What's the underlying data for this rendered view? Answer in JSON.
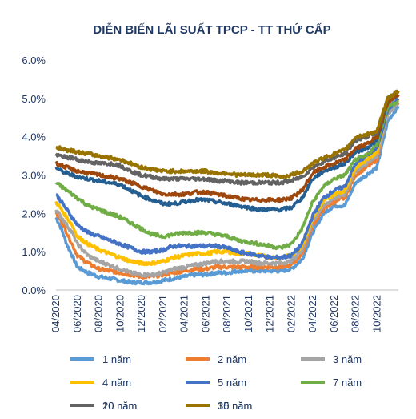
{
  "chart_data": {
    "type": "line",
    "title": "DIỄN BIẾN LÃI SUẤT TPCP - TT THỨ CẤP",
    "xlabel": "",
    "ylabel": "",
    "ylim": [
      0,
      6
    ],
    "y_ticks": [
      "0.0%",
      "1.0%",
      "2.0%",
      "3.0%",
      "4.0%",
      "5.0%",
      "6.0%"
    ],
    "x_ticks": [
      "04/2020",
      "06/2020",
      "08/2020",
      "10/2020",
      "12/2020",
      "02/2021",
      "04/2021",
      "06/2021",
      "08/2021",
      "10/2021",
      "12/2021",
      "02/2022",
      "04/2022",
      "06/2022",
      "08/2022",
      "10/2022"
    ],
    "x_range": [
      "2020-04",
      "2022-10"
    ],
    "grid": false,
    "legend_position": "bottom",
    "x": [
      0,
      0.5,
      1,
      1.5,
      2,
      3,
      4,
      5,
      6,
      7,
      8,
      9,
      10,
      11,
      12,
      13,
      14,
      15,
      16,
      17,
      18,
      19,
      20,
      21,
      22,
      23,
      24,
      25,
      26,
      27,
      28,
      29,
      30,
      31,
      32
    ],
    "series": [
      {
        "name": "1 năm",
        "color": "#5b9bd5",
        "values": [
          1.9,
          1.6,
          1.2,
          0.9,
          0.6,
          0.45,
          0.35,
          0.3,
          0.25,
          0.2,
          0.2,
          0.2,
          0.25,
          0.3,
          0.35,
          0.4,
          0.4,
          0.45,
          0.45,
          0.5,
          0.5,
          0.5,
          0.5,
          0.5,
          0.55,
          0.8,
          1.5,
          2.0,
          2.2,
          2.2,
          2.8,
          3.0,
          3.2,
          4.4,
          4.8
        ]
      },
      {
        "name": "2 năm",
        "color": "#ed7d31",
        "values": [
          2.0,
          1.8,
          1.5,
          1.2,
          0.9,
          0.7,
          0.55,
          0.5,
          0.45,
          0.4,
          0.35,
          0.35,
          0.4,
          0.45,
          0.5,
          0.55,
          0.55,
          0.6,
          0.6,
          0.6,
          0.6,
          0.6,
          0.6,
          0.6,
          0.65,
          0.95,
          1.7,
          2.1,
          2.3,
          2.4,
          3.0,
          3.2,
          3.4,
          4.6,
          4.9
        ]
      },
      {
        "name": "3 năm",
        "color": "#a5a5a5",
        "values": [
          2.1,
          1.9,
          1.7,
          1.5,
          1.2,
          0.9,
          0.75,
          0.65,
          0.55,
          0.45,
          0.4,
          0.4,
          0.45,
          0.55,
          0.6,
          0.65,
          0.7,
          0.75,
          0.75,
          0.75,
          0.75,
          0.7,
          0.7,
          0.7,
          0.75,
          1.05,
          1.8,
          2.2,
          2.4,
          2.5,
          3.1,
          3.3,
          3.5,
          4.6,
          4.9
        ]
      },
      {
        "name": "4 năm",
        "color": "#ffc000",
        "values": [
          2.3,
          2.1,
          1.9,
          1.7,
          1.4,
          1.2,
          1.05,
          0.95,
          0.85,
          0.75,
          0.7,
          0.7,
          0.75,
          0.85,
          0.9,
          0.95,
          0.95,
          1.0,
          1.0,
          0.95,
          0.95,
          0.9,
          0.85,
          0.85,
          0.9,
          1.15,
          1.9,
          2.3,
          2.5,
          2.6,
          3.2,
          3.4,
          3.6,
          4.7,
          5.0
        ]
      },
      {
        "name": "5 năm",
        "color": "#4472c4",
        "values": [
          2.5,
          2.3,
          2.1,
          1.9,
          1.7,
          1.5,
          1.4,
          1.3,
          1.2,
          1.1,
          1.0,
          1.0,
          1.05,
          1.15,
          1.15,
          1.15,
          1.15,
          1.15,
          1.1,
          1.0,
          0.95,
          0.9,
          0.85,
          0.85,
          0.9,
          1.2,
          1.95,
          2.4,
          2.6,
          2.7,
          3.3,
          3.5,
          3.7,
          4.7,
          5.0
        ]
      },
      {
        "name": "7 năm",
        "color": "#70ad47",
        "values": [
          2.8,
          2.7,
          2.6,
          2.5,
          2.4,
          2.2,
          2.1,
          2.0,
          1.9,
          1.75,
          1.6,
          1.45,
          1.4,
          1.45,
          1.5,
          1.5,
          1.5,
          1.45,
          1.4,
          1.3,
          1.25,
          1.2,
          1.15,
          1.1,
          1.2,
          1.6,
          2.3,
          2.7,
          2.9,
          3.0,
          3.4,
          3.5,
          3.8,
          4.8,
          4.9
        ]
      },
      {
        "name": "10 năm",
        "color": "#255e91",
        "values": [
          3.2,
          3.1,
          3.05,
          3.0,
          2.95,
          2.9,
          2.85,
          2.8,
          2.75,
          2.6,
          2.45,
          2.35,
          2.25,
          2.25,
          2.3,
          2.35,
          2.35,
          2.3,
          2.25,
          2.2,
          2.15,
          2.1,
          2.1,
          2.1,
          2.15,
          2.4,
          2.9,
          3.1,
          3.2,
          3.3,
          3.6,
          3.7,
          3.9,
          4.9,
          5.1
        ]
      },
      {
        "name": "15 năm",
        "color": "#9e480e",
        "values": [
          3.3,
          3.25,
          3.2,
          3.15,
          3.1,
          3.05,
          3.0,
          2.95,
          2.9,
          2.8,
          2.7,
          2.6,
          2.5,
          2.5,
          2.5,
          2.55,
          2.55,
          2.5,
          2.45,
          2.4,
          2.35,
          2.35,
          2.35,
          2.35,
          2.4,
          2.6,
          3.05,
          3.2,
          3.3,
          3.4,
          3.7,
          3.8,
          4.0,
          4.9,
          5.1
        ]
      },
      {
        "name": "20 năm",
        "color": "#636363",
        "values": [
          3.5,
          3.5,
          3.45,
          3.45,
          3.4,
          3.35,
          3.3,
          3.3,
          3.25,
          3.1,
          3.0,
          2.95,
          2.9,
          2.9,
          2.9,
          2.9,
          2.9,
          2.85,
          2.85,
          2.8,
          2.8,
          2.8,
          2.8,
          2.8,
          2.85,
          2.95,
          3.2,
          3.35,
          3.45,
          3.55,
          3.9,
          4.0,
          4.1,
          5.0,
          5.2
        ]
      },
      {
        "name": "30 năm",
        "color": "#997300",
        "values": [
          3.7,
          3.7,
          3.65,
          3.65,
          3.6,
          3.55,
          3.5,
          3.45,
          3.4,
          3.3,
          3.2,
          3.15,
          3.1,
          3.1,
          3.1,
          3.1,
          3.1,
          3.05,
          3.05,
          3.0,
          3.0,
          3.0,
          3.0,
          2.95,
          3.0,
          3.1,
          3.3,
          3.45,
          3.55,
          3.65,
          4.0,
          4.05,
          4.15,
          5.0,
          5.2
        ]
      }
    ]
  }
}
